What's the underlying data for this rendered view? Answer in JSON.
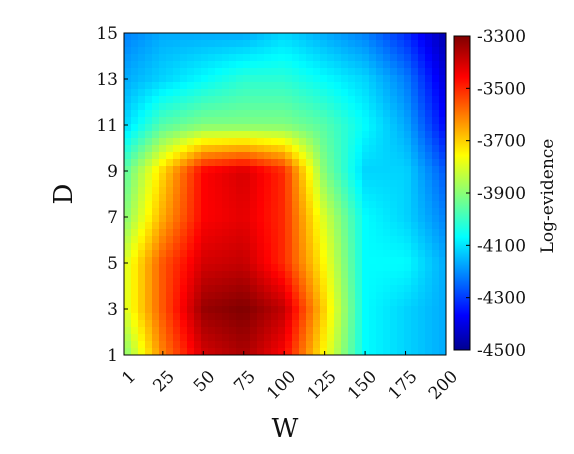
{
  "chart_data": {
    "type": "heatmap",
    "title": "",
    "xlabel": "W",
    "ylabel": "D",
    "x_ticks": [
      "1",
      "25",
      "50",
      "75",
      "100",
      "125",
      "150",
      "175",
      "200"
    ],
    "y_ticks": [
      "1",
      "3",
      "5",
      "7",
      "9",
      "11",
      "13",
      "15"
    ],
    "xlim": [
      1,
      200
    ],
    "ylim": [
      1,
      15
    ],
    "x": [
      1,
      25,
      50,
      75,
      100,
      125,
      150,
      175,
      200
    ],
    "y": [
      1,
      3,
      5,
      7,
      9,
      11,
      13,
      15
    ],
    "colorbar": {
      "label": "Log-evidence",
      "range": [
        -4500,
        -3300
      ],
      "ticks": [
        "-3300",
        "-3500",
        "-3700",
        "-3900",
        "-4100",
        "-4300",
        "-4500"
      ],
      "colormap": "jet"
    },
    "values": [
      [
        -3900,
        -3600,
        -3400,
        -3350,
        -3450,
        -3750,
        -4050,
        -4100,
        -4150
      ],
      [
        -3800,
        -3550,
        -3330,
        -3300,
        -3380,
        -3700,
        -4050,
        -4100,
        -4150
      ],
      [
        -3800,
        -3550,
        -3400,
        -3380,
        -3500,
        -3750,
        -4050,
        -4050,
        -4150
      ],
      [
        -3900,
        -3650,
        -3450,
        -3420,
        -3500,
        -3800,
        -4050,
        -4100,
        -4200
      ],
      [
        -3950,
        -3700,
        -3450,
        -3400,
        -3500,
        -3900,
        -4100,
        -4100,
        -4250
      ],
      [
        -4100,
        -3950,
        -3900,
        -3900,
        -3900,
        -3950,
        -4050,
        -4150,
        -4350
      ],
      [
        -4150,
        -4100,
        -4050,
        -4000,
        -4000,
        -4050,
        -4100,
        -4200,
        -4400
      ],
      [
        -4200,
        -4150,
        -4150,
        -4150,
        -4100,
        -4150,
        -4200,
        -4300,
        -4450
      ]
    ]
  }
}
